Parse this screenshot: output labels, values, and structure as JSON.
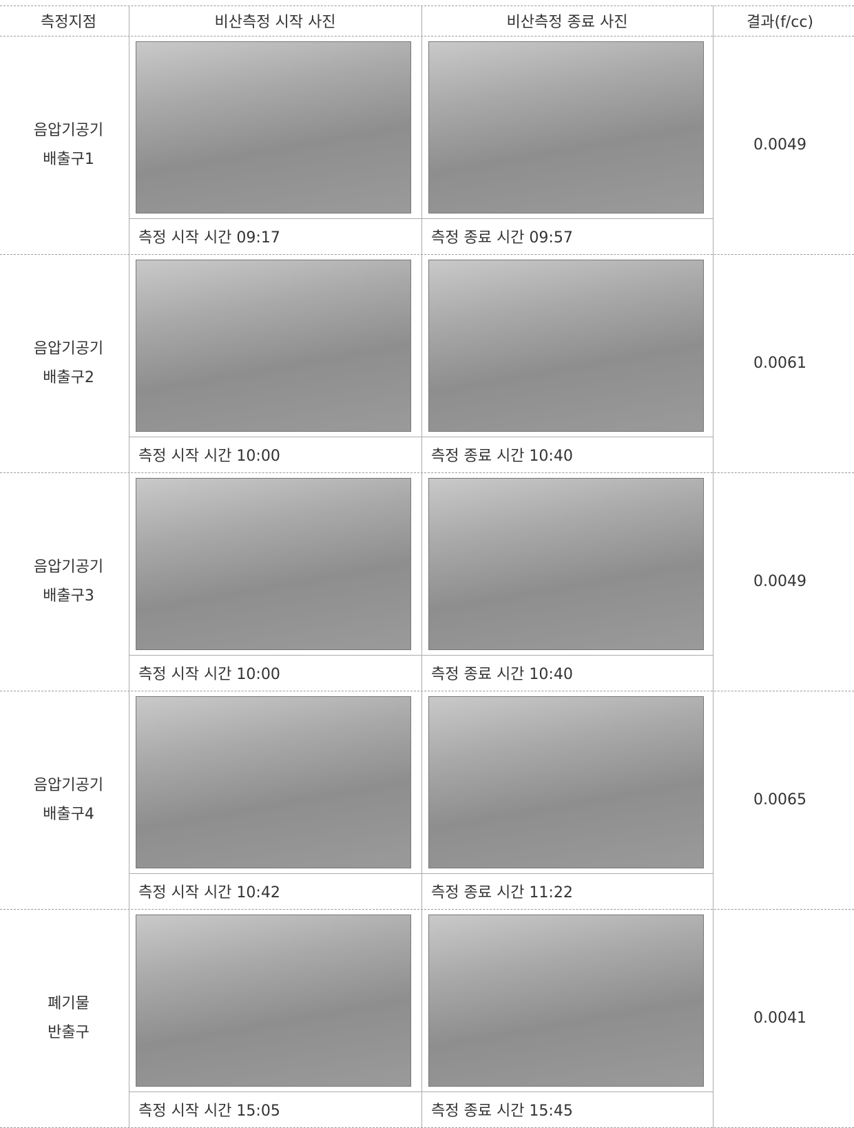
{
  "header": {
    "columns": [
      "측정지점",
      "비산측정 시작 사진",
      "비산측정 종료 사진",
      "결과(f/cc)"
    ]
  },
  "rows": [
    {
      "location": [
        "음압기공기",
        "배출구1"
      ],
      "start_caption": "측정 시작 시간 09:17",
      "end_caption": "측정 종료 시간 09:57",
      "result": "0.0049"
    },
    {
      "location": [
        "음압기공기",
        "배출구2"
      ],
      "start_caption": "측정 시작 시간 10:00",
      "end_caption": "측정 종료 시간 10:40",
      "result": "0.0061"
    },
    {
      "location": [
        "음압기공기",
        "배출구3"
      ],
      "start_caption": "측정 시작 시간 10:00",
      "end_caption": "측정 종료 시간 10:40",
      "result": "0.0049"
    },
    {
      "location": [
        "음압기공기",
        "배출구4"
      ],
      "start_caption": "측정 시작 시간 10:42",
      "end_caption": "측정 종료 시간 11:22",
      "result": "0.0065"
    },
    {
      "location": [
        "폐기물",
        "반출구"
      ],
      "start_caption": "측정 시작 시간 15:05",
      "end_caption": "측정 종료 시간 15:45",
      "result": "0.0041"
    }
  ]
}
